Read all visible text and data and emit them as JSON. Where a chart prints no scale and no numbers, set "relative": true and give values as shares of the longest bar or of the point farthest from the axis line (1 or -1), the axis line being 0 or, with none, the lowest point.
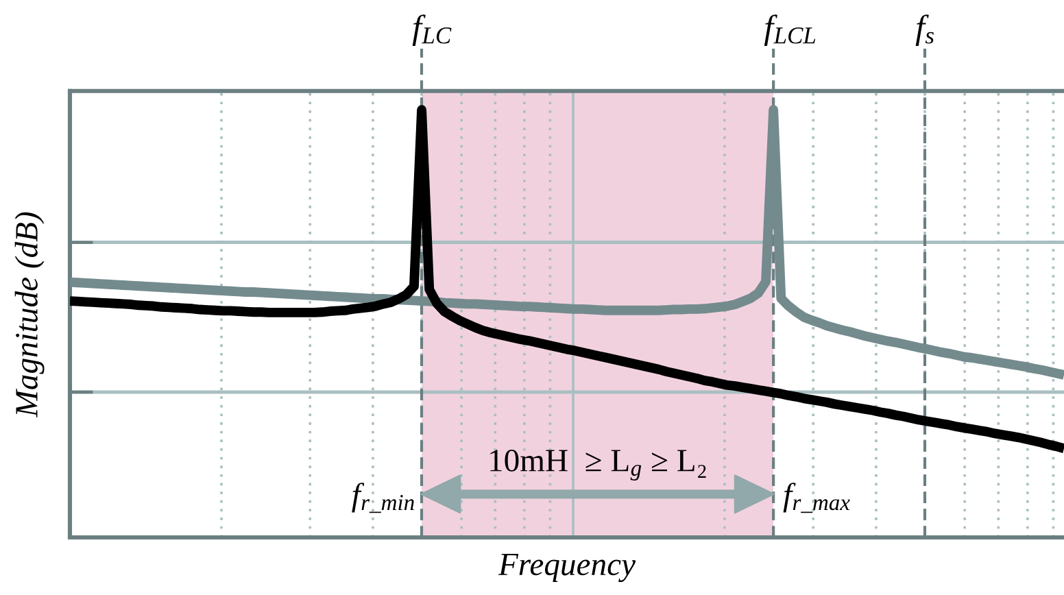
{
  "chart_data": {
    "type": "line",
    "relative": true,
    "xlabel": "Frequency",
    "ylabel": "Magnitude (dB)",
    "grid": "x",
    "categories": [
      null,
      null,
      null,
      null,
      null,
      null,
      null,
      null,
      null,
      null,
      null,
      null,
      null,
      null,
      null,
      null,
      null,
      null,
      null,
      null,
      null,
      null,
      null,
      null,
      null,
      null,
      null,
      null,
      null,
      null,
      null,
      null,
      null,
      null,
      null,
      null,
      null,
      null,
      null,
      null,
      null,
      null,
      null,
      null,
      null,
      null,
      null,
      null,
      null,
      null,
      null,
      null,
      null,
      null,
      null,
      null,
      null,
      null,
      null,
      null,
      null,
      null,
      null,
      null,
      null,
      null,
      null,
      null,
      null,
      null,
      null,
      null,
      null,
      null,
      null,
      null,
      null,
      null,
      null,
      null,
      null,
      null,
      null,
      null,
      null,
      null,
      null,
      null,
      null,
      null,
      null,
      null,
      null,
      null,
      null,
      null,
      null,
      null,
      null,
      null,
      null,
      null,
      null,
      null,
      null,
      null,
      null,
      null,
      null,
      null,
      null,
      null,
      null,
      null,
      null,
      null,
      null,
      null,
      null,
      null,
      null,
      null,
      null,
      null,
      null,
      null,
      null,
      null,
      null,
      null,
      null
    ],
    "series": [
      {
        "color": "#748b8e",
        "values": [
          0.597,
          0.596,
          0.595,
          0.594,
          0.593,
          0.592,
          0.591,
          0.59,
          0.589,
          0.588,
          0.587,
          0.586,
          0.585,
          0.584,
          0.583,
          0.582,
          0.581,
          0.58,
          0.579,
          0.578,
          0.577,
          0.576,
          0.575,
          0.574,
          0.574,
          0.573,
          0.572,
          0.571,
          0.57,
          0.569,
          0.568,
          0.567,
          0.566,
          0.565,
          0.564,
          0.563,
          0.562,
          0.561,
          0.56,
          0.559,
          0.558,
          0.558,
          0.557,
          0.556,
          0.555,
          0.554,
          0.553,
          0.552,
          0.551,
          0.549,
          0.548,
          0.547,
          0.546,
          0.546,
          0.545,
          0.544,
          0.543,
          0.542,
          0.541,
          0.54,
          0.54,
          0.539,
          0.538,
          0.537,
          0.536,
          0.535,
          0.534,
          0.534,
          0.533,
          0.532,
          0.531,
          0.531,
          0.531,
          0.531,
          0.531,
          0.531,
          0.531,
          0.531,
          0.532,
          0.533,
          0.533,
          0.534,
          0.534,
          0.535,
          0.537,
          0.539,
          0.541,
          0.545,
          0.552,
          0.559,
          0.571,
          0.598,
          1,
          0.559,
          0.541,
          0.527,
          0.515,
          0.508,
          0.502,
          0.495,
          0.49,
          0.485,
          0.481,
          0.476,
          0.471,
          0.467,
          0.463,
          0.459,
          0.456,
          0.452,
          0.448,
          0.444,
          0.441,
          0.437,
          0.433,
          0.43,
          0.426,
          0.422,
          0.42,
          0.417,
          0.414,
          0.411,
          0.408,
          0.405,
          0.402,
          0.399,
          0.395,
          0.392,
          0.388,
          0.384,
          0.38
        ]
      },
      {
        "color": "#000000",
        "values": [
          0.553,
          0.552,
          0.551,
          0.55,
          0.549,
          0.548,
          0.547,
          0.546,
          0.545,
          0.543,
          0.542,
          0.541,
          0.539,
          0.538,
          0.537,
          0.536,
          0.535,
          0.533,
          0.532,
          0.531,
          0.53,
          0.53,
          0.529,
          0.528,
          0.527,
          0.527,
          0.526,
          0.526,
          0.526,
          0.526,
          0.526,
          0.526,
          0.526,
          0.527,
          0.529,
          0.53,
          0.531,
          0.534,
          0.536,
          0.538,
          0.541,
          0.546,
          0.55,
          0.558,
          0.568,
          0.587,
          1,
          0.58,
          0.547,
          0.528,
          0.517,
          0.507,
          0.499,
          0.491,
          0.484,
          0.479,
          0.475,
          0.471,
          0.467,
          0.463,
          0.46,
          0.456,
          0.452,
          0.448,
          0.444,
          0.44,
          0.437,
          0.433,
          0.429,
          0.425,
          0.421,
          0.417,
          0.413,
          0.409,
          0.405,
          0.401,
          0.397,
          0.393,
          0.388,
          0.384,
          0.38,
          0.376,
          0.372,
          0.367,
          0.364,
          0.36,
          0.356,
          0.354,
          0.351,
          0.348,
          0.345,
          0.342,
          0.339,
          0.336,
          0.332,
          0.329,
          0.325,
          0.322,
          0.319,
          0.316,
          0.312,
          0.309,
          0.306,
          0.303,
          0.3,
          0.297,
          0.293,
          0.29,
          0.286,
          0.283,
          0.279,
          0.275,
          0.272,
          0.269,
          0.266,
          0.263,
          0.259,
          0.256,
          0.253,
          0.25,
          0.247,
          0.243,
          0.24,
          0.237,
          0.234,
          0.23,
          0.226,
          0.222,
          0.217,
          0.213,
          0.208
        ]
      }
    ],
    "ref_lines": [
      {
        "axis": "y",
        "value": 0.69,
        "color": "#a9bfc1",
        "line_style": "solid"
      },
      {
        "axis": "y",
        "value": 0.34,
        "color": "#a9bfc1",
        "line_style": "solid"
      }
    ],
    "annotations": [
      "f$_{LC}$",
      "f$_{LCL}$",
      "f$_{s}$",
      "f$_{r_min}$",
      "f$_{r_max}$",
      "10mH  ≥ L$_{g}$ ≥ L₂"
    ]
  }
}
